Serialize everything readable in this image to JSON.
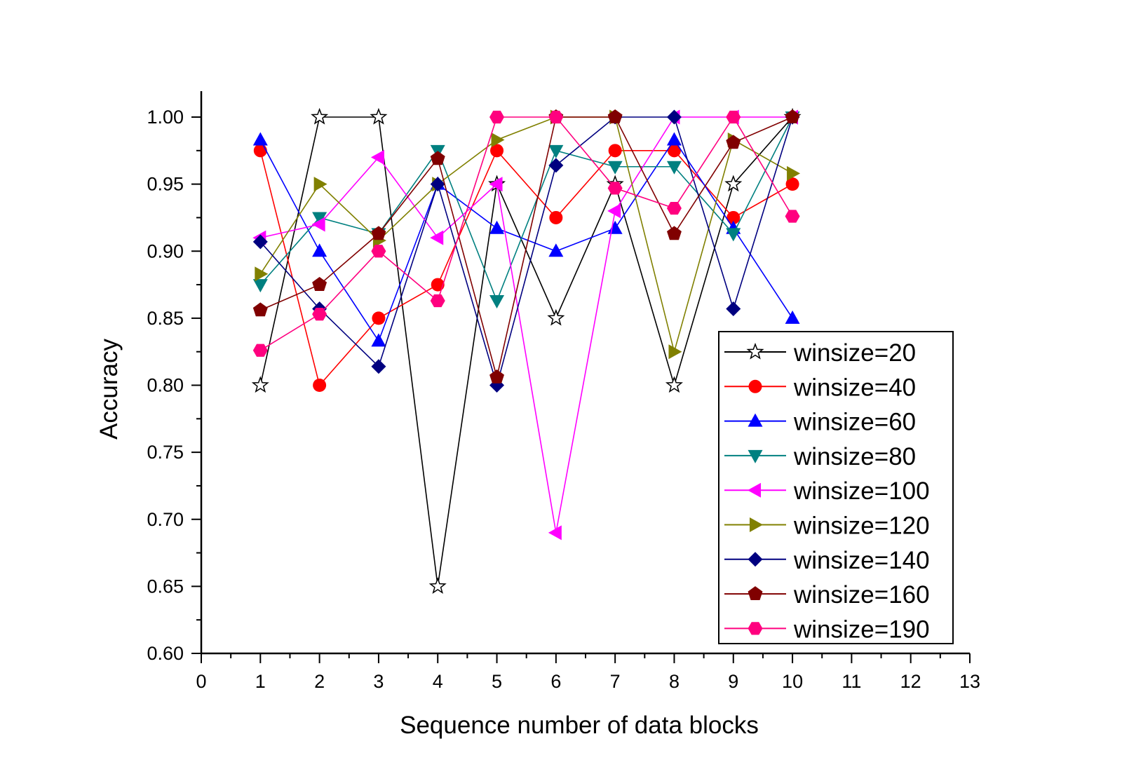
{
  "chart_data": {
    "type": "line",
    "title": "",
    "xlabel": "Sequence number of data blocks",
    "ylabel": "Accuracy",
    "xlim": [
      0,
      13
    ],
    "ylim": [
      0.6,
      1.02
    ],
    "xticks": [
      "0",
      "1",
      "2",
      "3",
      "4",
      "5",
      "6",
      "7",
      "8",
      "9",
      "10",
      "11",
      "12",
      "13"
    ],
    "yticks": [
      "0.60",
      "0.65",
      "0.70",
      "0.75",
      "0.80",
      "0.85",
      "0.90",
      "0.95",
      "1.00"
    ],
    "grid": false,
    "legend_position": "lower-right",
    "x": [
      1,
      2,
      3,
      4,
      5,
      6,
      7,
      8,
      9,
      10
    ],
    "series": [
      {
        "name": "winsize=20",
        "color": "#000000",
        "marker": "star",
        "values": [
          0.8,
          1.0,
          1.0,
          0.65,
          0.95,
          0.85,
          0.95,
          0.8,
          0.95,
          1.0
        ]
      },
      {
        "name": "winsize=40",
        "color": "#ff0000",
        "marker": "circle",
        "values": [
          0.975,
          0.8,
          0.85,
          0.875,
          0.975,
          0.925,
          0.975,
          0.975,
          0.925,
          0.95
        ]
      },
      {
        "name": "winsize=60",
        "color": "#0000ff",
        "marker": "triangle-up",
        "values": [
          0.983,
          0.9,
          0.833,
          0.95,
          0.917,
          0.9,
          0.917,
          0.983,
          0.917,
          0.85
        ]
      },
      {
        "name": "winsize=80",
        "color": "#008080",
        "marker": "triangle-down",
        "values": [
          0.875,
          0.925,
          0.913,
          0.975,
          0.863,
          0.975,
          0.963,
          0.963,
          0.913,
          1.0
        ]
      },
      {
        "name": "winsize=100",
        "color": "#ff00ff",
        "marker": "triangle-left",
        "values": [
          0.91,
          0.92,
          0.97,
          0.91,
          0.95,
          0.69,
          0.93,
          1.0,
          1.0,
          1.0
        ]
      },
      {
        "name": "winsize=120",
        "color": "#808000",
        "marker": "triangle-right",
        "values": [
          0.883,
          0.95,
          0.908,
          0.95,
          0.983,
          1.0,
          1.0,
          0.825,
          0.983,
          0.958
        ]
      },
      {
        "name": "winsize=140",
        "color": "#000080",
        "marker": "diamond",
        "values": [
          0.907,
          0.857,
          0.814,
          0.95,
          0.8,
          0.964,
          1.0,
          1.0,
          0.857,
          1.0
        ]
      },
      {
        "name": "winsize=160",
        "color": "#800000",
        "marker": "pentagon",
        "values": [
          0.856,
          0.875,
          0.913,
          0.969,
          0.806,
          1.0,
          1.0,
          0.913,
          0.981,
          1.0
        ]
      },
      {
        "name": "winsize=190",
        "color": "#ff007f",
        "marker": "hexagon",
        "values": [
          0.826,
          0.853,
          0.9,
          0.863,
          1.0,
          1.0,
          0.947,
          0.932,
          1.0,
          0.926
        ]
      }
    ]
  }
}
